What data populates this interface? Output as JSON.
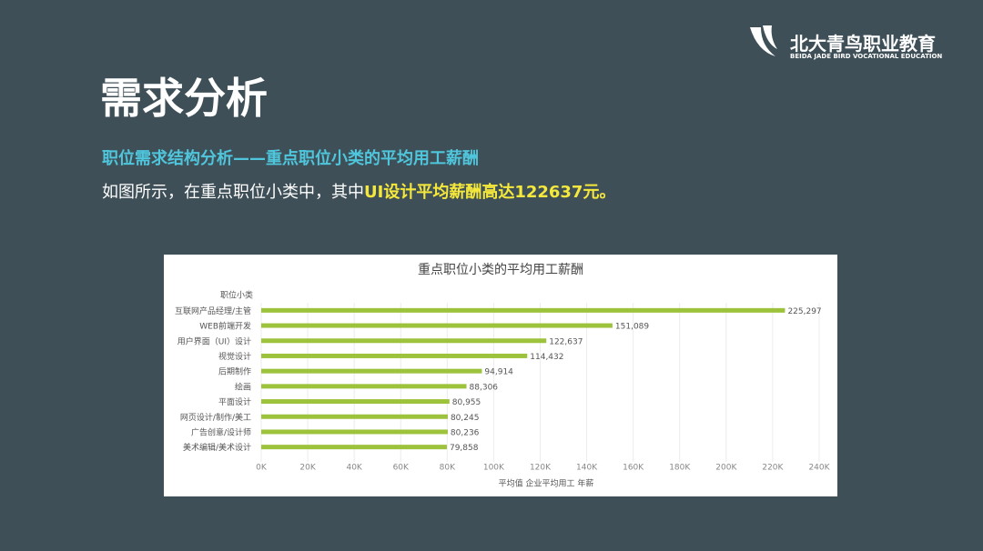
{
  "slide": {
    "title": "需求分析",
    "subtitle": "职位需求结构分析——重点职位小类的平均用工薪酬",
    "body": "如图所示，在重点职位小类中，其中",
    "highlight": "UI设计平均薪酬高达122637元。",
    "logo": {
      "name": "北大青鸟职业教育",
      "tagline": "BEIDA JADE BIRD VOCATIONAL EDUCATION"
    }
  },
  "chart_data": {
    "type": "hbar",
    "title": "重点职位小类的平均用工薪酬",
    "y_label": "职位小类",
    "x_label": "平均值 企业平均用工 年薪",
    "categories": [
      "互联网产品经理/主管",
      "WEB前端开发",
      "用户界面（UI）设计",
      "视觉设计",
      "后期制作",
      "绘画",
      "平面设计",
      "网页设计/制作/美工",
      "广告创意/设计师",
      "美术编辑/美术设计"
    ],
    "values": [
      225297,
      151089,
      122637,
      114432,
      94914,
      88306,
      80955,
      80245,
      80236,
      79858
    ],
    "value_labels": [
      "225,297",
      "151,089",
      "122,637",
      "114,432",
      "94,914",
      "88,306",
      "80,955",
      "80,245",
      "80,236",
      "79,858"
    ],
    "color": "#9dc23b",
    "xlim": [
      0,
      240000
    ],
    "xticks": [
      {
        "value": 0,
        "label": "0K"
      },
      {
        "value": 20000,
        "label": "20K"
      },
      {
        "value": 40000,
        "label": "40K"
      },
      {
        "value": 60000,
        "label": "60K"
      },
      {
        "value": 80000,
        "label": "80K"
      },
      {
        "value": 100000,
        "label": "100K"
      },
      {
        "value": 120000,
        "label": "120K"
      },
      {
        "value": 140000,
        "label": "140K"
      },
      {
        "value": 160000,
        "label": "160K"
      },
      {
        "value": 180000,
        "label": "180K"
      },
      {
        "value": 200000,
        "label": "200K"
      },
      {
        "value": 220000,
        "label": "220K"
      },
      {
        "value": 240000,
        "label": "240K"
      }
    ],
    "grid": true
  }
}
